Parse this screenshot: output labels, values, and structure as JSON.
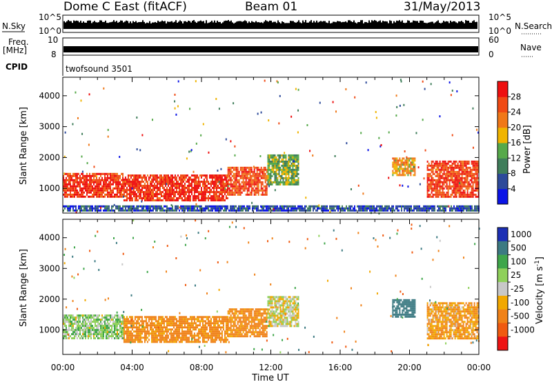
{
  "header": {
    "station": "Dome C East (fitACF)",
    "beam": "Beam 01",
    "date": "31/May/2013"
  },
  "top_panels": {
    "nsky_label": "N.Sky",
    "nsearch_label": "N.Search",
    "count_axis_top": "10^5",
    "count_axis_bottom": "10^0",
    "freq_label_line1": "Freq.",
    "freq_label_line2": "[MHz]",
    "freq_tick_top": "10",
    "freq_tick_bottom": "8",
    "nave_label": "Nave",
    "nave_tick_top": "60",
    "nave_tick_bottom": "0",
    "cpid_label": "CPID",
    "cpid_value": "twofsound 3501"
  },
  "chart_data": [
    {
      "type": "heatmap",
      "name": "power",
      "xlabel": "Time UT",
      "ylabel": "Slant Range [km]",
      "colorbar_label": "Power [dB]",
      "x_ticks": [
        "00:00",
        "04:00",
        "08:00",
        "12:00",
        "16:00",
        "20:00",
        "00:00"
      ],
      "y_ticks": [
        1000,
        2000,
        3000,
        4000
      ],
      "ylim": [
        200,
        4600
      ],
      "xlim_hours": [
        0,
        24
      ],
      "colorbar_ticks": [
        4,
        8,
        12,
        16,
        20,
        24,
        28
      ],
      "colorbar_range": [
        0,
        32
      ],
      "colorbar_colors": [
        "#0b14e6",
        "#2d4a9a",
        "#3f7d5a",
        "#56a94a",
        "#f0b400",
        "#f07818",
        "#f04a14",
        "#ee1010"
      ],
      "regions": [
        {
          "t": [
            0,
            3.5
          ],
          "r": [
            700,
            1500
          ],
          "value": 28
        },
        {
          "t": [
            3.5,
            9.5
          ],
          "r": [
            600,
            1450
          ],
          "value": 28
        },
        {
          "t": [
            9.5,
            11.8
          ],
          "r": [
            800,
            1700
          ],
          "value": 26
        },
        {
          "t": [
            11.8,
            13.6
          ],
          "r": [
            1100,
            2100
          ],
          "value": 14
        },
        {
          "t": [
            19,
            20.3
          ],
          "r": [
            1400,
            2000
          ],
          "value": 20
        },
        {
          "t": [
            21,
            24
          ],
          "r": [
            700,
            1900
          ],
          "value": 27
        },
        {
          "t": [
            0,
            24
          ],
          "r": [
            250,
            450
          ],
          "value": 6
        }
      ]
    },
    {
      "type": "heatmap",
      "name": "velocity",
      "xlabel": "Time UT",
      "ylabel": "Slant Range [km]",
      "colorbar_label": "Velocity [m s^-1]",
      "x_ticks": [
        "00:00",
        "04:00",
        "08:00",
        "12:00",
        "16:00",
        "20:00",
        "00:00"
      ],
      "y_ticks": [
        1000,
        2000,
        3000,
        4000
      ],
      "ylim": [
        200,
        4600
      ],
      "xlim_hours": [
        0,
        24
      ],
      "colorbar_ticks": [
        "1000",
        "500",
        "100",
        "25",
        "-25",
        "-100",
        "-500",
        "-1000"
      ],
      "colorbar_colors": [
        "#1c2fb4",
        "#3c7a82",
        "#3fa64a",
        "#8fd05a",
        "#c8c8c8",
        "#f2a800",
        "#f08218",
        "#f05a10",
        "#ee1414"
      ],
      "regions": [
        {
          "t": [
            0,
            3.5
          ],
          "r": [
            700,
            1500
          ],
          "value": 60
        },
        {
          "t": [
            3.5,
            9.5
          ],
          "r": [
            600,
            1450
          ],
          "value": -150
        },
        {
          "t": [
            9.5,
            11.8
          ],
          "r": [
            800,
            1700
          ],
          "value": -150
        },
        {
          "t": [
            11.8,
            13.6
          ],
          "r": [
            1100,
            2100
          ],
          "value": 0
        },
        {
          "t": [
            19,
            20.3
          ],
          "r": [
            1400,
            2000
          ],
          "value": 600
        },
        {
          "t": [
            21,
            24
          ],
          "r": [
            700,
            1900
          ],
          "value": -100
        }
      ]
    }
  ]
}
